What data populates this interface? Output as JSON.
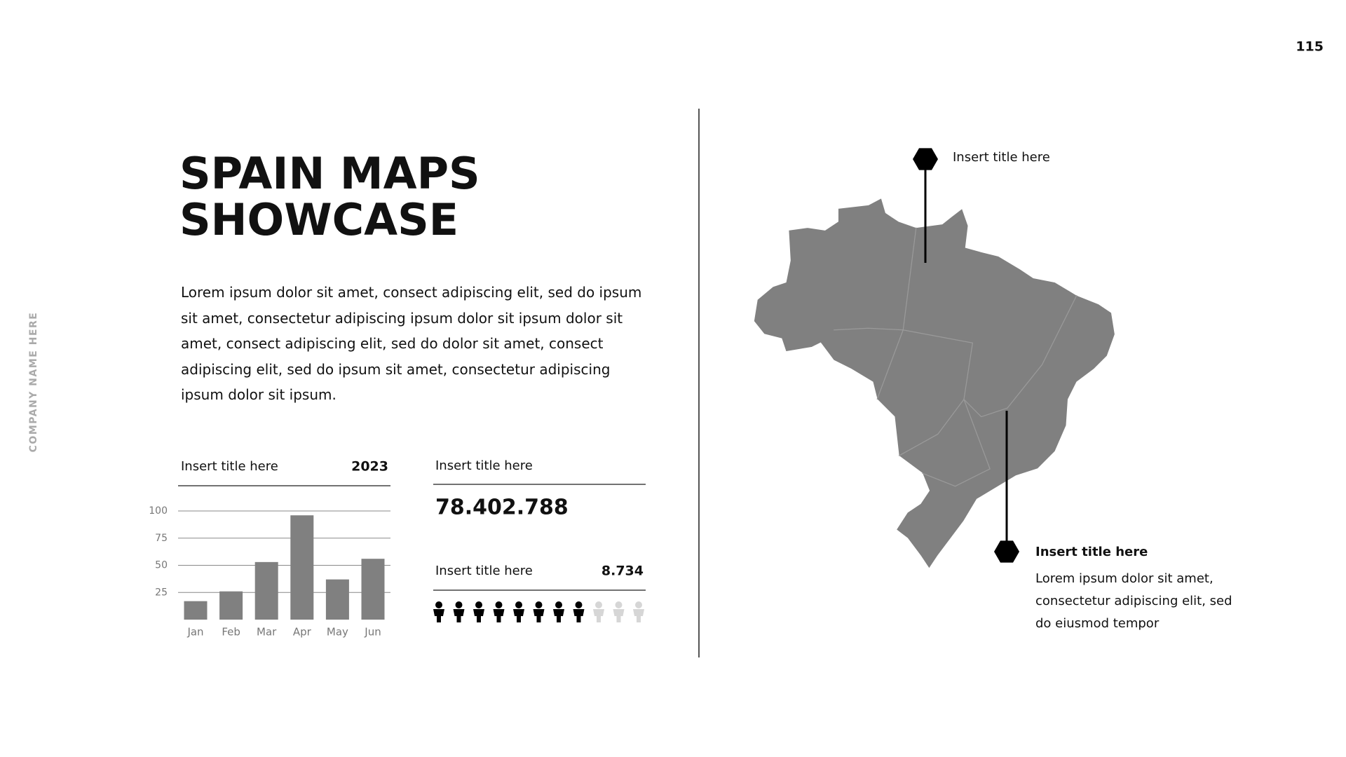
{
  "page_number": "115",
  "company": "COMPANY NAME HERE",
  "title": [
    "SPAIN MAPS",
    "SHOWCASE"
  ],
  "paragraph": "Lorem ipsum dolor sit amet, consect adipiscing elit, sed do ipsum sit amet, consectetur adipiscing ipsum dolor sit ipsum dolor sit amet, consect adipiscing elit, sed do dolor sit amet, consect adipiscing elit, sed do ipsum sit amet, consectetur adipiscing ipsum dolor sit ipsum.",
  "chart_data": {
    "type": "bar",
    "title": "Insert title here",
    "label": "2023",
    "categories": [
      "Jan",
      "Feb",
      "Mar",
      "Apr",
      "May",
      "Jun"
    ],
    "values": [
      17,
      26,
      53,
      96,
      37,
      56
    ],
    "color": "#808080",
    "ylim": [
      0,
      100
    ],
    "yticks": [
      25,
      50,
      75,
      100
    ],
    "grid": true
  },
  "stats": {
    "total": {
      "title": "Insert title here",
      "value": "78.402.788"
    },
    "people": {
      "title": "Insert title here",
      "value": "8.734",
      "icons": {
        "filled": 8,
        "total": 11
      }
    }
  },
  "map": {
    "pins": [
      {
        "title": "Insert title here"
      },
      {
        "title": "Insert title here",
        "text": [
          "Lorem ipsum dolor sit amet,",
          "consectetur adipiscing elit, sed",
          "do eiusmod tempor"
        ]
      }
    ]
  }
}
